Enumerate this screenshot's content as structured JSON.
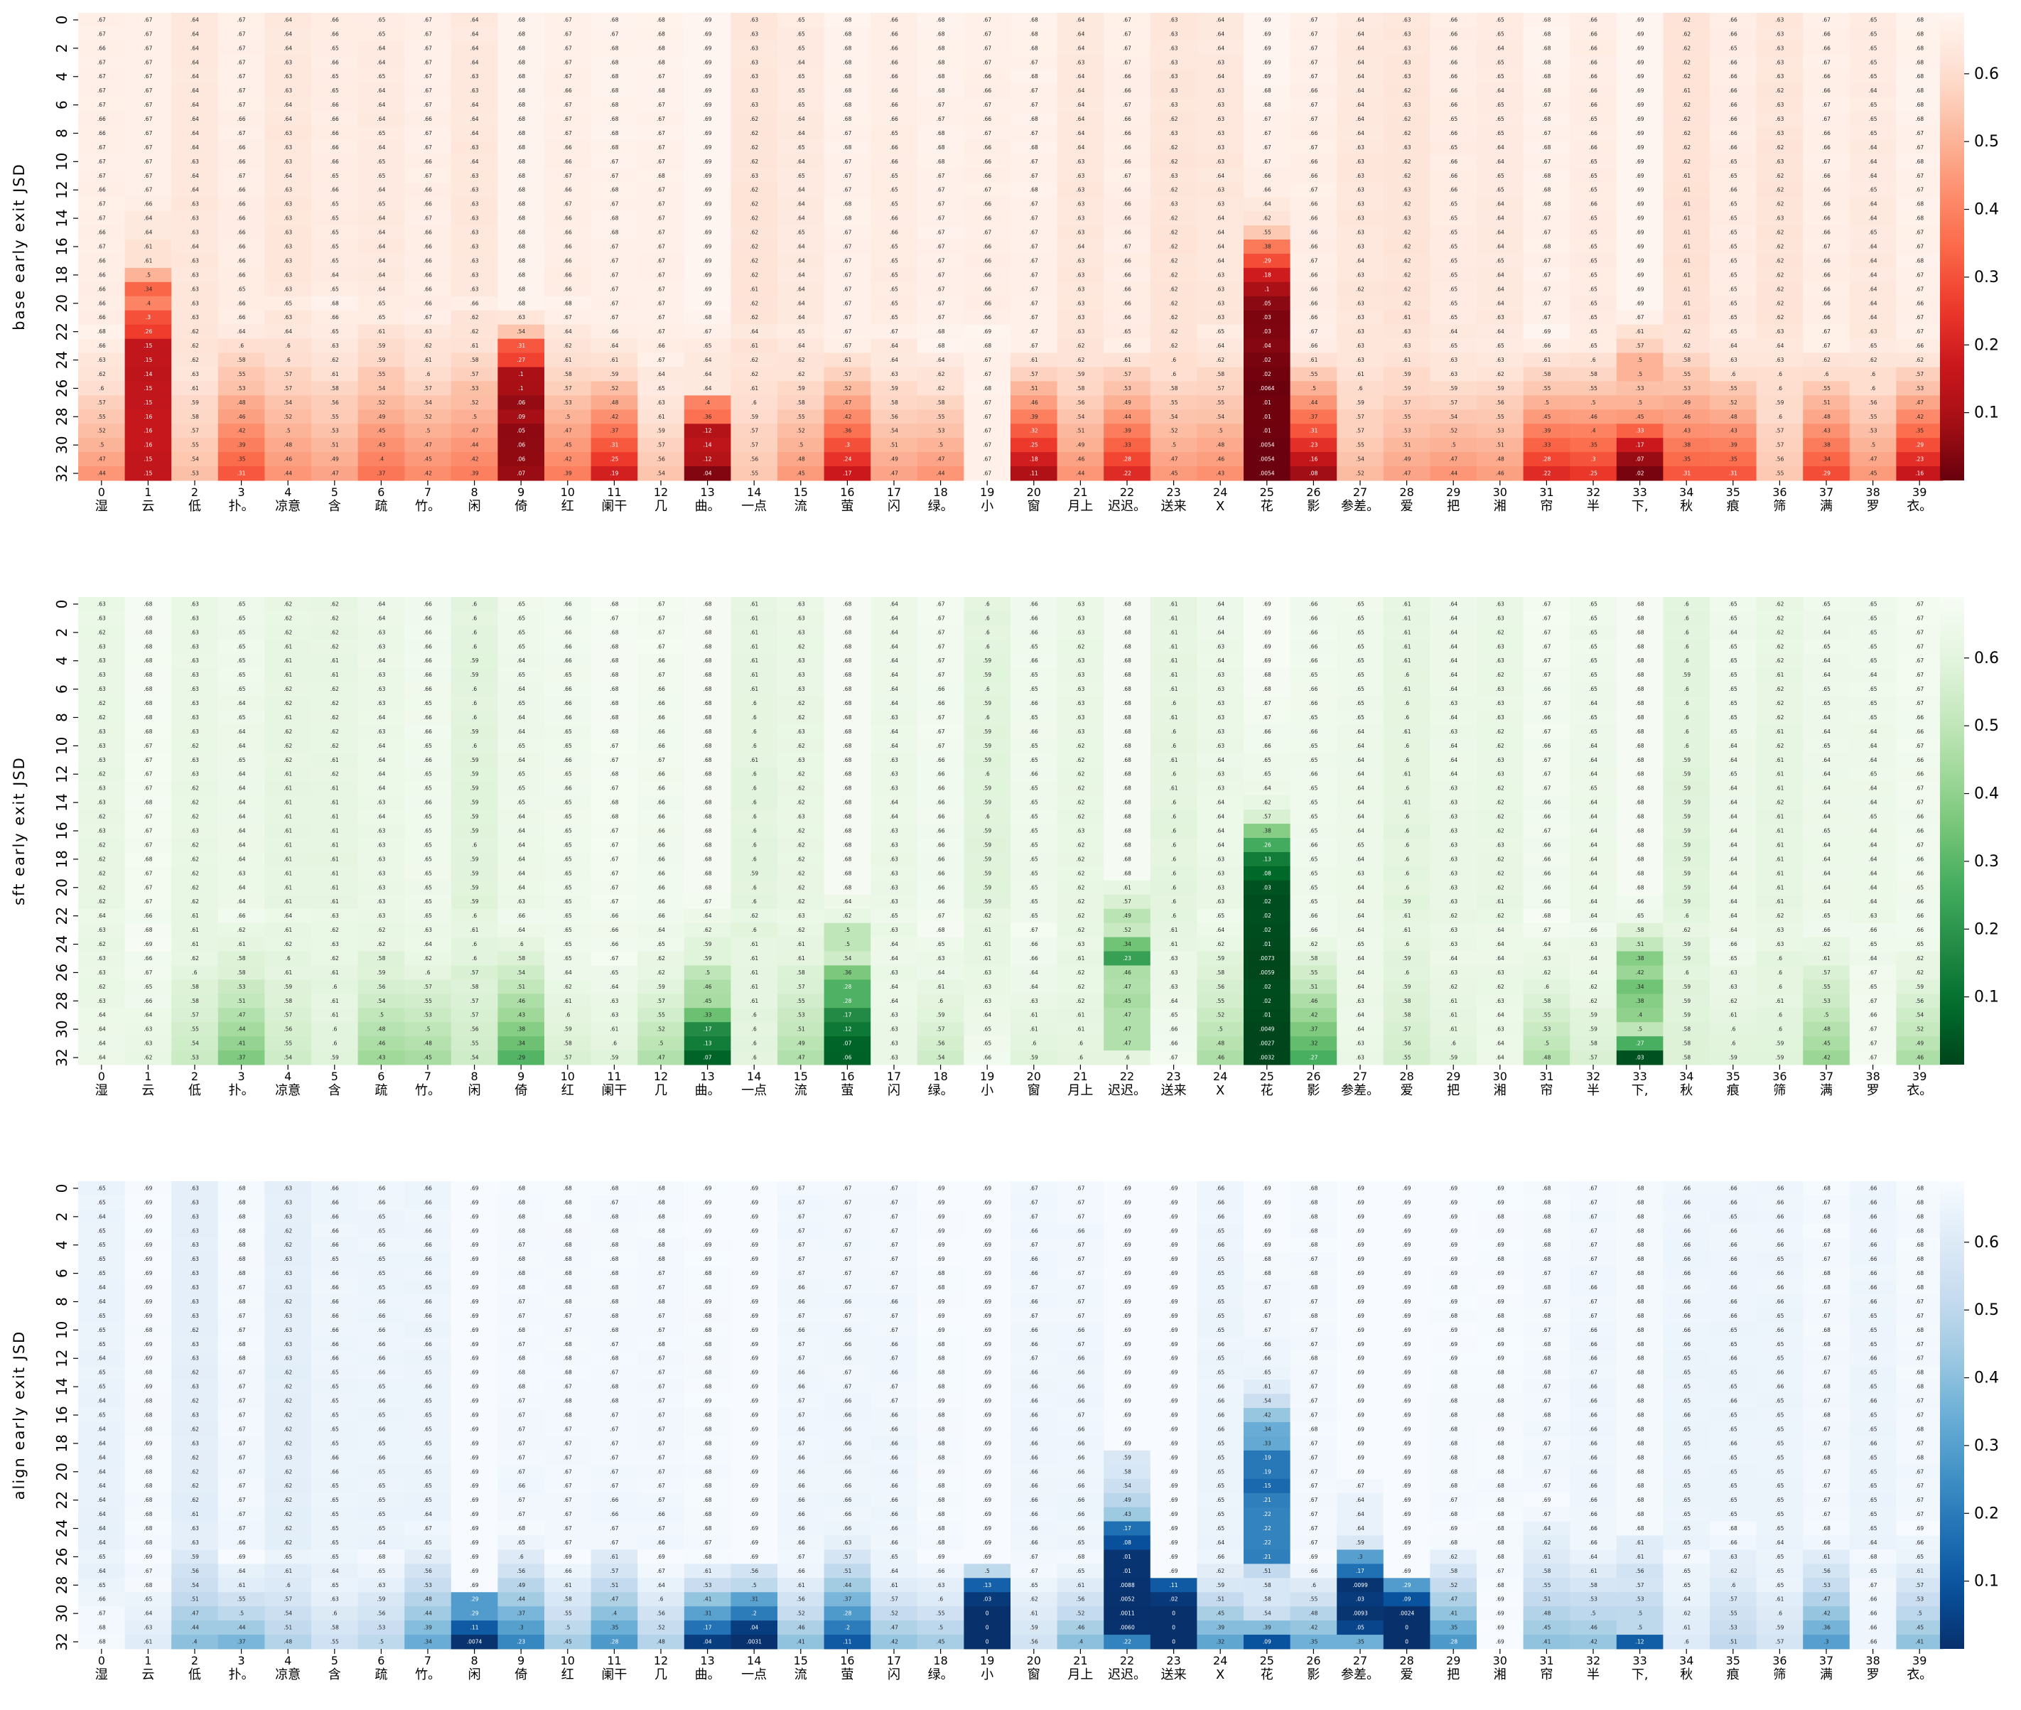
{
  "chart_data": [
    {
      "type": "heatmap",
      "name": "base",
      "ylabel": "base early exit JSD",
      "colormap": "Reds_r",
      "colorbar_ticks": [
        0.1,
        0.2,
        0.3,
        0.4,
        0.5,
        0.6
      ],
      "range": [
        0.0,
        0.69
      ],
      "rows": 33,
      "xticks": [
        "湿",
        "云",
        "低",
        "扑。",
        "凉意",
        "含",
        "疏",
        "竹。",
        "闲",
        "倚",
        "红",
        "阑干",
        "几",
        "曲。",
        "一点",
        "流",
        "萤",
        "闪",
        "绿。",
        "小",
        "窗",
        "月上",
        "迟迟。",
        "送来",
        "X",
        "花",
        "影",
        "参差。",
        "爱",
        "把",
        "湘",
        "帘",
        "半",
        "下,",
        "秋",
        "痕",
        "筛",
        "满",
        "罗",
        "衣。"
      ],
      "yticks": [
        "0",
        "2",
        "4",
        "6",
        "8",
        "10",
        "12",
        "14",
        "16",
        "18",
        "20",
        "22",
        "24",
        "26",
        "28",
        "30",
        "32"
      ],
      "baseline": [
        0.67,
        0.67,
        0.64,
        0.67,
        0.64,
        0.66,
        0.65,
        0.67,
        0.64,
        0.68,
        0.67,
        0.68,
        0.68,
        0.69,
        0.63,
        0.65,
        0.68,
        0.66,
        0.68,
        0.67,
        0.68,
        0.64,
        0.67,
        0.63,
        0.64,
        0.69,
        0.67,
        0.64,
        0.63,
        0.66,
        0.65,
        0.68,
        0.66,
        0.69,
        0.62,
        0.66,
        0.63,
        0.67,
        0.65,
        0.68
      ],
      "final": [
        0.44,
        0.15,
        0.53,
        0.31,
        0.44,
        0.47,
        0.37,
        0.42,
        0.39,
        0.07,
        0.39,
        0.19,
        0.54,
        0.036,
        0.55,
        0.45,
        0.17,
        0.47,
        0.44,
        0.67,
        0.11,
        0.44,
        0.22,
        0.45,
        0.43,
        0.0054,
        0.082,
        0.52,
        0.47,
        0.44,
        0.46,
        0.22,
        0.25,
        0.022,
        0.31,
        0.31,
        0.55,
        0.29,
        0.45,
        0.16
      ],
      "drop_start": [
        22,
        14,
        22,
        20,
        20,
        20,
        20,
        20,
        20,
        20,
        20,
        22,
        22,
        22,
        22,
        22,
        22,
        22,
        22,
        22,
        22,
        22,
        22,
        22,
        22,
        14,
        22,
        22,
        22,
        22,
        22,
        22,
        22,
        22,
        22,
        22,
        22,
        22,
        22,
        22
      ],
      "columns": {
        "1": [
          0.67,
          0.67,
          0.67,
          0.67,
          0.67,
          0.67,
          0.67,
          0.67,
          0.67,
          0.67,
          0.67,
          0.67,
          0.67,
          0.66,
          0.64,
          0.64,
          0.61,
          0.61,
          0.5,
          0.34,
          0.4,
          0.3,
          0.26,
          0.15,
          0.15,
          0.14,
          0.15,
          0.15,
          0.16,
          0.16,
          0.16,
          0.15,
          0.15
        ],
        "9": [
          0.68,
          0.68,
          0.68,
          0.68,
          0.68,
          0.68,
          0.68,
          0.68,
          0.68,
          0.68,
          0.68,
          0.68,
          0.68,
          0.68,
          0.68,
          0.68,
          0.68,
          0.68,
          0.68,
          0.68,
          0.68,
          0.63,
          0.54,
          0.31,
          0.27,
          0.1,
          0.096,
          0.064,
          0.087,
          0.054,
          0.055,
          0.058,
          0.07
        ],
        "13": [
          0.69,
          0.69,
          0.69,
          0.69,
          0.69,
          0.69,
          0.69,
          0.69,
          0.69,
          0.69,
          0.69,
          0.69,
          0.69,
          0.69,
          0.69,
          0.69,
          0.69,
          0.69,
          0.69,
          0.69,
          0.69,
          0.68,
          0.67,
          0.65,
          0.64,
          0.64,
          0.64,
          0.4,
          0.36,
          0.12,
          0.14,
          0.12,
          0.036
        ],
        "25": [
          0.69,
          0.69,
          0.69,
          0.69,
          0.69,
          0.68,
          0.68,
          0.67,
          0.67,
          0.67,
          0.67,
          0.66,
          0.66,
          0.64,
          0.62,
          0.55,
          0.38,
          0.29,
          0.18,
          0.098,
          0.05,
          0.029,
          0.033,
          0.04,
          0.023,
          0.015,
          0.0064,
          0.013,
          0.012,
          0.011,
          0.0054,
          0.0054,
          0.0054
        ],
        "33": [
          0.69,
          0.69,
          0.69,
          0.69,
          0.69,
          0.69,
          0.69,
          0.69,
          0.69,
          0.69,
          0.69,
          0.69,
          0.69,
          0.69,
          0.69,
          0.69,
          0.69,
          0.69,
          0.69,
          0.69,
          0.69,
          0.67,
          0.61,
          0.57,
          0.5,
          0.5,
          0.53,
          0.5,
          0.45,
          0.33,
          0.17,
          0.07,
          0.022
        ]
      }
    },
    {
      "type": "heatmap",
      "name": "sft",
      "ylabel": "sft early exit JSD",
      "colormap": "Greens_r",
      "colorbar_ticks": [
        0.1,
        0.2,
        0.3,
        0.4,
        0.5,
        0.6
      ],
      "range": [
        0.0,
        0.69
      ],
      "rows": 33,
      "xticks": [
        "湿",
        "云",
        "低",
        "扑。",
        "凉意",
        "含",
        "疏",
        "竹。",
        "闲",
        "倚",
        "红",
        "阑干",
        "几",
        "曲。",
        "一点",
        "流",
        "萤",
        "闪",
        "绿。",
        "小",
        "窗",
        "月上",
        "迟迟。",
        "送来",
        "X",
        "花",
        "影",
        "参差。",
        "爱",
        "把",
        "湘",
        "帘",
        "半",
        "下,",
        "秋",
        "痕",
        "筛",
        "满",
        "罗",
        "衣。"
      ],
      "yticks": [
        "0",
        "2",
        "4",
        "6",
        "8",
        "10",
        "12",
        "14",
        "16",
        "18",
        "20",
        "22",
        "24",
        "26",
        "28",
        "30",
        "32"
      ],
      "baseline": [
        0.63,
        0.68,
        0.63,
        0.65,
        0.62,
        0.62,
        0.64,
        0.66,
        0.6,
        0.65,
        0.66,
        0.68,
        0.67,
        0.68,
        0.61,
        0.63,
        0.67,
        0.64,
        0.67,
        0.6,
        0.66,
        0.63,
        0.68,
        0.61,
        0.64,
        0.69,
        0.66,
        0.65,
        0.61,
        0.64,
        0.63,
        0.67,
        0.65,
        0.68,
        0.6,
        0.65,
        0.62,
        0.65,
        0.65,
        0.67
      ],
      "final": [
        0.64,
        0.62,
        0.53,
        0.37,
        0.54,
        0.59,
        0.43,
        0.45,
        0.54,
        0.29,
        0.57,
        0.59,
        0.47,
        0.066,
        0.6,
        0.47,
        0.063,
        0.63,
        0.54,
        0.66,
        0.59,
        0.6,
        0.6,
        0.67,
        0.46,
        0.0032,
        0.27,
        0.63,
        0.55,
        0.59,
        0.64,
        0.48,
        0.57,
        0.027,
        0.58,
        0.59,
        0.59,
        0.42,
        0.67,
        0.46
      ],
      "drop_start": [
        22,
        22,
        22,
        22,
        22,
        22,
        22,
        22,
        22,
        22,
        22,
        22,
        22,
        22,
        22,
        22,
        22,
        22,
        22,
        22,
        22,
        22,
        22,
        22,
        22,
        14,
        22,
        22,
        22,
        22,
        22,
        22,
        22,
        22,
        22,
        22,
        22,
        22,
        22,
        22
      ],
      "columns": {
        "13": [
          0.68,
          0.68,
          0.68,
          0.68,
          0.68,
          0.68,
          0.68,
          0.68,
          0.68,
          0.68,
          0.68,
          0.68,
          0.68,
          0.68,
          0.68,
          0.68,
          0.68,
          0.68,
          0.68,
          0.68,
          0.68,
          0.67,
          0.64,
          0.62,
          0.59,
          0.59,
          0.5,
          0.46,
          0.45,
          0.33,
          0.17,
          0.13,
          0.066
        ],
        "16": [
          0.68,
          0.68,
          0.68,
          0.68,
          0.68,
          0.68,
          0.68,
          0.68,
          0.68,
          0.68,
          0.68,
          0.68,
          0.68,
          0.68,
          0.68,
          0.68,
          0.68,
          0.68,
          0.68,
          0.68,
          0.68,
          0.64,
          0.62,
          0.5,
          0.5,
          0.54,
          0.36,
          0.28,
          0.28,
          0.17,
          0.12,
          0.067,
          0.063
        ],
        "22": [
          0.68,
          0.68,
          0.68,
          0.68,
          0.68,
          0.68,
          0.68,
          0.68,
          0.68,
          0.68,
          0.68,
          0.68,
          0.68,
          0.68,
          0.68,
          0.68,
          0.68,
          0.68,
          0.68,
          0.68,
          0.61,
          0.57,
          0.49,
          0.52,
          0.34,
          0.23,
          0.46,
          0.47,
          0.45,
          0.47,
          0.47,
          0.47,
          0.6
        ],
        "25": [
          0.69,
          0.69,
          0.69,
          0.69,
          0.69,
          0.68,
          0.68,
          0.67,
          0.67,
          0.66,
          0.66,
          0.65,
          0.65,
          0.64,
          0.62,
          0.57,
          0.38,
          0.26,
          0.13,
          0.077,
          0.031,
          0.02,
          0.024,
          0.016,
          0.012,
          0.0073,
          0.0059,
          0.016,
          0.015,
          0.01,
          0.0049,
          0.0027,
          0.0032
        ],
        "33": [
          0.68,
          0.68,
          0.68,
          0.68,
          0.68,
          0.68,
          0.68,
          0.68,
          0.68,
          0.68,
          0.68,
          0.68,
          0.68,
          0.68,
          0.68,
          0.68,
          0.68,
          0.68,
          0.68,
          0.68,
          0.68,
          0.66,
          0.65,
          0.58,
          0.51,
          0.38,
          0.42,
          0.34,
          0.38,
          0.4,
          0.5,
          0.27,
          0.027
        ]
      }
    },
    {
      "type": "heatmap",
      "name": "align",
      "ylabel": "align early exit JSD",
      "colormap": "Blues_r",
      "colorbar_ticks": [
        0.1,
        0.2,
        0.3,
        0.4,
        0.5,
        0.6
      ],
      "range": [
        0.0,
        0.69
      ],
      "rows": 33,
      "xticks": [
        "湿",
        "云",
        "低",
        "扑。",
        "凉意",
        "含",
        "疏",
        "竹。",
        "闲",
        "倚",
        "红",
        "阑干",
        "几",
        "曲。",
        "一点",
        "流",
        "萤",
        "闪",
        "绿。",
        "小",
        "窗",
        "月上",
        "迟迟。",
        "送来",
        "X",
        "花",
        "影",
        "参差。",
        "爱",
        "把",
        "湘",
        "帘",
        "半",
        "下,",
        "秋",
        "痕",
        "筛",
        "满",
        "罗",
        "衣。"
      ],
      "yticks": [
        "0",
        "2",
        "4",
        "6",
        "8",
        "10",
        "12",
        "14",
        "16",
        "18",
        "20",
        "22",
        "24",
        "26",
        "28",
        "30",
        "32"
      ],
      "baseline": [
        0.65,
        0.69,
        0.63,
        0.68,
        0.63,
        0.66,
        0.66,
        0.66,
        0.69,
        0.68,
        0.68,
        0.68,
        0.68,
        0.69,
        0.69,
        0.67,
        0.67,
        0.67,
        0.69,
        0.69,
        0.67,
        0.67,
        0.69,
        0.69,
        0.66,
        0.69,
        0.68,
        0.67,
        0.69,
        0.69,
        0.69,
        0.68,
        0.67,
        0.68,
        0.66,
        0.66,
        0.66,
        0.68,
        0.66,
        0.68
      ],
      "final": [
        0.68,
        0.61,
        0.4,
        0.37,
        0.48,
        0.55,
        0.5,
        0.34,
        0.0074,
        0.23,
        0.45,
        0.28,
        0.48,
        0.035,
        0.0031,
        0.41,
        0.11,
        0.42,
        0.45,
        0.0,
        0.56,
        0.4,
        0.22,
        0.0,
        0.32,
        0.089,
        0.35,
        0.35,
        0.0,
        0.28,
        0.69,
        0.41,
        0.42,
        0.12,
        0.6,
        0.51,
        0.57,
        0.3,
        0.66,
        0.41
      ],
      "drop_start": [
        26,
        26,
        24,
        26,
        26,
        26,
        26,
        24,
        26,
        24,
        26,
        24,
        26,
        26,
        26,
        26,
        24,
        26,
        26,
        26,
        26,
        26,
        18,
        26,
        26,
        14,
        26,
        24,
        26,
        24,
        26,
        22,
        24,
        26,
        26,
        24,
        26,
        24,
        26,
        24
      ],
      "columns": {
        "8": [
          0.69,
          0.69,
          0.69,
          0.69,
          0.69,
          0.69,
          0.69,
          0.69,
          0.69,
          0.69,
          0.69,
          0.69,
          0.69,
          0.69,
          0.69,
          0.69,
          0.69,
          0.69,
          0.69,
          0.69,
          0.69,
          0.69,
          0.69,
          0.69,
          0.69,
          0.69,
          0.69,
          0.69,
          0.69,
          0.29,
          0.29,
          0.11,
          0.0074
        ],
        "14": [
          0.69,
          0.69,
          0.69,
          0.69,
          0.69,
          0.69,
          0.69,
          0.69,
          0.69,
          0.69,
          0.69,
          0.69,
          0.69,
          0.69,
          0.69,
          0.69,
          0.69,
          0.69,
          0.69,
          0.69,
          0.69,
          0.69,
          0.69,
          0.69,
          0.69,
          0.69,
          0.69,
          0.56,
          0.5,
          0.31,
          0.2,
          0.036,
          0.0031
        ],
        "19": [
          0.69,
          0.69,
          0.69,
          0.69,
          0.69,
          0.69,
          0.69,
          0.69,
          0.69,
          0.69,
          0.69,
          0.69,
          0.69,
          0.69,
          0.69,
          0.69,
          0.69,
          0.69,
          0.69,
          0.69,
          0.69,
          0.69,
          0.69,
          0.69,
          0.69,
          0.69,
          0.69,
          0.5,
          0.13,
          0.027,
          0.0,
          0.0,
          0.0
        ],
        "22": [
          0.69,
          0.69,
          0.69,
          0.69,
          0.69,
          0.69,
          0.69,
          0.69,
          0.69,
          0.69,
          0.69,
          0.69,
          0.69,
          0.69,
          0.69,
          0.69,
          0.69,
          0.69,
          0.69,
          0.59,
          0.58,
          0.54,
          0.49,
          0.43,
          0.17,
          0.084,
          0.013,
          0.01,
          0.0088,
          0.0052,
          0.0011,
          0.006,
          0.22
        ],
        "23": [
          0.69,
          0.69,
          0.69,
          0.69,
          0.69,
          0.69,
          0.69,
          0.69,
          0.69,
          0.69,
          0.69,
          0.69,
          0.69,
          0.69,
          0.69,
          0.69,
          0.69,
          0.69,
          0.69,
          0.69,
          0.69,
          0.69,
          0.69,
          0.69,
          0.69,
          0.69,
          0.69,
          0.69,
          0.11,
          0.022,
          0.0,
          0.0,
          0.0
        ],
        "25": [
          0.69,
          0.69,
          0.69,
          0.69,
          0.69,
          0.68,
          0.68,
          0.67,
          0.67,
          0.67,
          0.67,
          0.66,
          0.66,
          0.65,
          0.61,
          0.54,
          0.42,
          0.34,
          0.33,
          0.19,
          0.19,
          0.15,
          0.21,
          0.22,
          0.22,
          0.22,
          0.21,
          0.51,
          0.58,
          0.58,
          0.54,
          0.39,
          0.089
        ],
        "27": [
          0.69,
          0.69,
          0.69,
          0.69,
          0.69,
          0.69,
          0.69,
          0.69,
          0.69,
          0.69,
          0.69,
          0.69,
          0.69,
          0.69,
          0.69,
          0.69,
          0.69,
          0.69,
          0.69,
          0.69,
          0.69,
          0.67,
          0.64,
          0.64,
          0.64,
          0.59,
          0.3,
          0.17,
          0.0099,
          0.028,
          0.0093,
          0.054,
          0.35
        ],
        "28": [
          0.69,
          0.69,
          0.69,
          0.69,
          0.69,
          0.69,
          0.69,
          0.69,
          0.69,
          0.69,
          0.69,
          0.69,
          0.69,
          0.69,
          0.69,
          0.69,
          0.69,
          0.69,
          0.69,
          0.69,
          0.69,
          0.69,
          0.69,
          0.69,
          0.69,
          0.69,
          0.69,
          0.69,
          0.29,
          0.09,
          0.0024,
          0.0,
          0.0
        ],
        "33": [
          0.68,
          0.68,
          0.68,
          0.68,
          0.68,
          0.68,
          0.68,
          0.68,
          0.68,
          0.68,
          0.68,
          0.68,
          0.68,
          0.68,
          0.68,
          0.68,
          0.68,
          0.68,
          0.68,
          0.68,
          0.68,
          0.68,
          0.68,
          0.68,
          0.68,
          0.61,
          0.61,
          0.56,
          0.57,
          0.53,
          0.5,
          0.5,
          0.12
        ]
      }
    }
  ]
}
